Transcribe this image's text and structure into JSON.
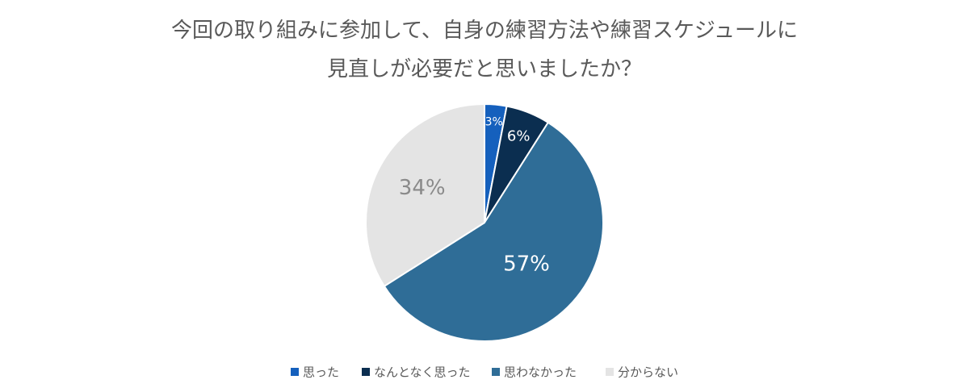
{
  "chart_data": {
    "type": "pie",
    "title": "今回の取り組みに参加して、自身の練習方法や練習スケジュールに見直しが必要だと思いましたか？",
    "categories": [
      "思った",
      "なんとなく思った",
      "思わなかった",
      "分からない"
    ],
    "values": [
      3,
      6,
      57,
      34
    ],
    "value_labels": [
      "3%",
      "6%",
      "57%",
      "34%"
    ],
    "colors": [
      "#1560bd",
      "#0b2e50",
      "#2f6d97",
      "#e4e4e4"
    ],
    "legend": "bottom"
  }
}
